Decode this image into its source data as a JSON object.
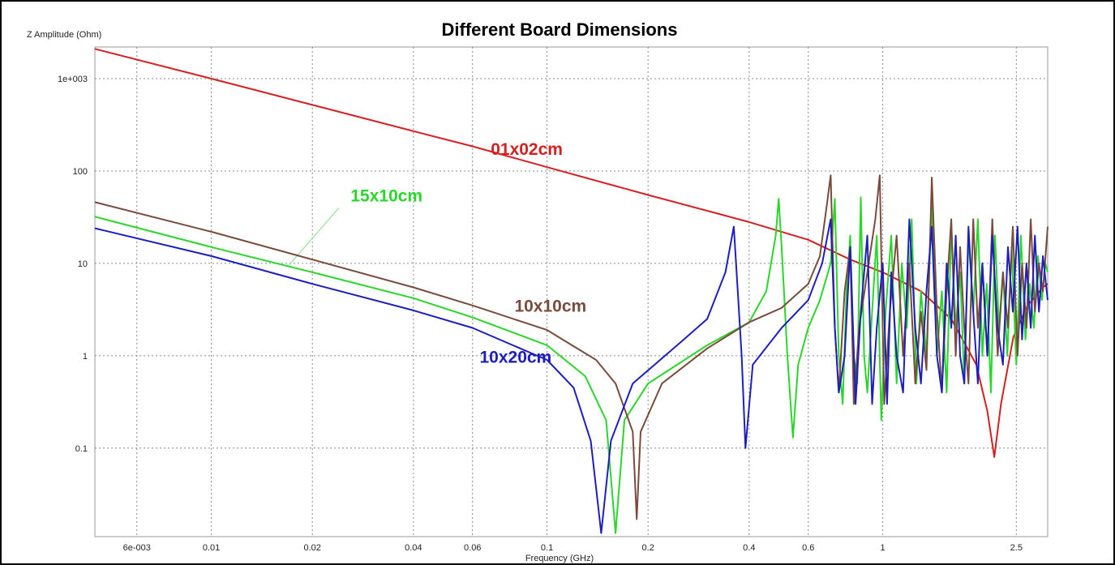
{
  "chart_data": {
    "type": "line",
    "title": "Different Board Dimensions",
    "xlabel": "Frequency (GHz)",
    "ylabel": "Z Amplitude (Ohm)",
    "x_scale": "log",
    "y_scale": "log",
    "xlim": [
      0.0045,
      3.1
    ],
    "ylim": [
      0.011,
      2200
    ],
    "grid": true,
    "x_ticks": [
      {
        "value": 0.006,
        "label": "6e-003"
      },
      {
        "value": 0.01,
        "label": "0.01"
      },
      {
        "value": 0.02,
        "label": "0.02"
      },
      {
        "value": 0.04,
        "label": "0.04"
      },
      {
        "value": 0.06,
        "label": "0.06"
      },
      {
        "value": 0.1,
        "label": "0.1"
      },
      {
        "value": 0.2,
        "label": "0.2"
      },
      {
        "value": 0.4,
        "label": "0.4"
      },
      {
        "value": 0.6,
        "label": "0.6"
      },
      {
        "value": 1,
        "label": "1"
      },
      {
        "value": 2.5,
        "label": "2.5"
      }
    ],
    "y_ticks": [
      {
        "value": 0.1,
        "label": "0.1"
      },
      {
        "value": 1,
        "label": "1"
      },
      {
        "value": 10,
        "label": "10"
      },
      {
        "value": 100,
        "label": "100"
      },
      {
        "value": 1000,
        "label": "1e+003"
      }
    ],
    "series": [
      {
        "name": "01x02cm",
        "color": "#d42020",
        "label_at": [
          0.068,
          150
        ],
        "points": [
          [
            0.0045,
            2100
          ],
          [
            0.01,
            1000
          ],
          [
            0.02,
            520
          ],
          [
            0.04,
            270
          ],
          [
            0.06,
            185
          ],
          [
            0.1,
            110
          ],
          [
            0.2,
            55
          ],
          [
            0.4,
            28
          ],
          [
            0.6,
            18
          ],
          [
            0.8,
            11
          ],
          [
            1.0,
            8
          ],
          [
            1.3,
            5
          ],
          [
            1.6,
            2.5
          ],
          [
            1.9,
            0.8
          ],
          [
            2.05,
            0.25
          ],
          [
            2.15,
            0.08
          ],
          [
            2.25,
            0.3
          ],
          [
            2.45,
            1.6
          ],
          [
            2.7,
            3.5
          ],
          [
            3.0,
            5.5
          ],
          [
            3.1,
            6
          ]
        ]
      },
      {
        "name": "15x10cm",
        "color": "#2ad62a",
        "label_at": [
          0.026,
          47
        ],
        "pointer": [
          [
            0.024,
            40
          ],
          [
            0.017,
            9.5
          ]
        ],
        "points": [
          [
            0.0045,
            32
          ],
          [
            0.01,
            15
          ],
          [
            0.02,
            8
          ],
          [
            0.04,
            4.2
          ],
          [
            0.06,
            2.6
          ],
          [
            0.1,
            1.3
          ],
          [
            0.13,
            0.6
          ],
          [
            0.15,
            0.2
          ],
          [
            0.16,
            0.012
          ],
          [
            0.17,
            0.2
          ],
          [
            0.2,
            0.5
          ],
          [
            0.3,
            1.3
          ],
          [
            0.4,
            2.3
          ],
          [
            0.45,
            5
          ],
          [
            0.48,
            20
          ],
          [
            0.49,
            50
          ],
          [
            0.5,
            15
          ],
          [
            0.52,
            1
          ],
          [
            0.54,
            0.13
          ],
          [
            0.56,
            0.8
          ],
          [
            0.6,
            2
          ],
          [
            0.65,
            4
          ],
          [
            0.7,
            10
          ],
          [
            0.72,
            50
          ],
          [
            0.74,
            1
          ],
          [
            0.76,
            0.3
          ],
          [
            0.78,
            5
          ],
          [
            0.8,
            20
          ],
          [
            0.82,
            1
          ],
          [
            0.84,
            0.5
          ],
          [
            0.86,
            52
          ],
          [
            0.88,
            1
          ],
          [
            0.9,
            0.4
          ],
          [
            0.93,
            3
          ],
          [
            0.96,
            20
          ],
          [
            0.99,
            0.2
          ],
          [
            1.02,
            3
          ],
          [
            1.06,
            20
          ],
          [
            1.1,
            0.5
          ],
          [
            1.14,
            10
          ],
          [
            1.18,
            2
          ],
          [
            1.22,
            30
          ],
          [
            1.26,
            0.5
          ],
          [
            1.3,
            5
          ],
          [
            1.35,
            1
          ],
          [
            1.4,
            50
          ],
          [
            1.45,
            1
          ],
          [
            1.5,
            5
          ],
          [
            1.55,
            0.4
          ],
          [
            1.6,
            25
          ],
          [
            1.65,
            2
          ],
          [
            1.7,
            8
          ],
          [
            1.75,
            0.5
          ],
          [
            1.8,
            20
          ],
          [
            1.86,
            3
          ],
          [
            1.92,
            30
          ],
          [
            1.98,
            1
          ],
          [
            2.04,
            6
          ],
          [
            2.1,
            0.4
          ],
          [
            2.16,
            20
          ],
          [
            2.22,
            2
          ],
          [
            2.28,
            8
          ],
          [
            2.35,
            1
          ],
          [
            2.42,
            15
          ],
          [
            2.5,
            0.8
          ],
          [
            2.58,
            20
          ],
          [
            2.66,
            1.5
          ],
          [
            2.74,
            6
          ],
          [
            2.82,
            2
          ],
          [
            2.9,
            12
          ],
          [
            2.98,
            4
          ],
          [
            3.05,
            10
          ],
          [
            3.1,
            8
          ]
        ]
      },
      {
        "name": "10x10cm",
        "color": "#7a4b3c",
        "label_at": [
          0.08,
          3.0
        ],
        "points": [
          [
            0.0045,
            46
          ],
          [
            0.01,
            22
          ],
          [
            0.02,
            11
          ],
          [
            0.04,
            5.5
          ],
          [
            0.06,
            3.5
          ],
          [
            0.1,
            1.9
          ],
          [
            0.14,
            0.9
          ],
          [
            0.16,
            0.5
          ],
          [
            0.18,
            0.15
          ],
          [
            0.185,
            0.017
          ],
          [
            0.19,
            0.15
          ],
          [
            0.22,
            0.5
          ],
          [
            0.3,
            1.2
          ],
          [
            0.4,
            2.3
          ],
          [
            0.5,
            3.3
          ],
          [
            0.6,
            6
          ],
          [
            0.65,
            12
          ],
          [
            0.68,
            40
          ],
          [
            0.7,
            90
          ],
          [
            0.72,
            2
          ],
          [
            0.74,
            0.4
          ],
          [
            0.77,
            5
          ],
          [
            0.8,
            15
          ],
          [
            0.82,
            0.3
          ],
          [
            0.85,
            2
          ],
          [
            0.9,
            8
          ],
          [
            0.95,
            30
          ],
          [
            0.98,
            90
          ],
          [
            1.01,
            0.3
          ],
          [
            1.05,
            3
          ],
          [
            1.1,
            20
          ],
          [
            1.15,
            1
          ],
          [
            1.2,
            10
          ],
          [
            1.25,
            0.5
          ],
          [
            1.3,
            3
          ],
          [
            1.35,
            0.7
          ],
          [
            1.4,
            85
          ],
          [
            1.45,
            3
          ],
          [
            1.5,
            0.4
          ],
          [
            1.55,
            5
          ],
          [
            1.6,
            30
          ],
          [
            1.65,
            1
          ],
          [
            1.7,
            15
          ],
          [
            1.75,
            2
          ],
          [
            1.8,
            0.5
          ],
          [
            1.86,
            30
          ],
          [
            1.92,
            2
          ],
          [
            1.98,
            10
          ],
          [
            2.05,
            1
          ],
          [
            2.12,
            30
          ],
          [
            2.2,
            1
          ],
          [
            2.28,
            8
          ],
          [
            2.36,
            2
          ],
          [
            2.44,
            25
          ],
          [
            2.52,
            1
          ],
          [
            2.6,
            10
          ],
          [
            2.68,
            2
          ],
          [
            2.76,
            30
          ],
          [
            2.84,
            3
          ],
          [
            2.92,
            10
          ],
          [
            3.0,
            5
          ],
          [
            3.1,
            25
          ]
        ]
      },
      {
        "name": "10x20cm",
        "color": "#1e1ebe",
        "label_at": [
          0.063,
          0.84
        ],
        "points": [
          [
            0.0045,
            24
          ],
          [
            0.01,
            12
          ],
          [
            0.02,
            6
          ],
          [
            0.04,
            3.1
          ],
          [
            0.06,
            2.0
          ],
          [
            0.1,
            0.9
          ],
          [
            0.12,
            0.45
          ],
          [
            0.135,
            0.12
          ],
          [
            0.145,
            0.012
          ],
          [
            0.155,
            0.12
          ],
          [
            0.18,
            0.5
          ],
          [
            0.25,
            1.4
          ],
          [
            0.3,
            2.5
          ],
          [
            0.34,
            8
          ],
          [
            0.36,
            25
          ],
          [
            0.37,
            5
          ],
          [
            0.38,
            1
          ],
          [
            0.39,
            0.1
          ],
          [
            0.41,
            0.8
          ],
          [
            0.5,
            2
          ],
          [
            0.6,
            4
          ],
          [
            0.66,
            10
          ],
          [
            0.7,
            30
          ],
          [
            0.72,
            2
          ],
          [
            0.74,
            0.4
          ],
          [
            0.77,
            1
          ],
          [
            0.8,
            15
          ],
          [
            0.83,
            0.3
          ],
          [
            0.86,
            3
          ],
          [
            0.9,
            20
          ],
          [
            0.93,
            0.3
          ],
          [
            0.96,
            2
          ],
          [
            1.0,
            10
          ],
          [
            1.03,
            0.3
          ],
          [
            1.06,
            8
          ],
          [
            1.1,
            1
          ],
          [
            1.15,
            0.4
          ],
          [
            1.2,
            30
          ],
          [
            1.25,
            2
          ],
          [
            1.3,
            0.5
          ],
          [
            1.35,
            5
          ],
          [
            1.4,
            25
          ],
          [
            1.45,
            1
          ],
          [
            1.5,
            0.4
          ],
          [
            1.55,
            10
          ],
          [
            1.6,
            2
          ],
          [
            1.65,
            20
          ],
          [
            1.7,
            1
          ],
          [
            1.75,
            0.5
          ],
          [
            1.8,
            25
          ],
          [
            1.86,
            3
          ],
          [
            1.92,
            0.5
          ],
          [
            1.98,
            10
          ],
          [
            2.05,
            1
          ],
          [
            2.12,
            20
          ],
          [
            2.2,
            2
          ],
          [
            2.28,
            0.8
          ],
          [
            2.36,
            15
          ],
          [
            2.44,
            3
          ],
          [
            2.52,
            25
          ],
          [
            2.6,
            1.5
          ],
          [
            2.68,
            10
          ],
          [
            2.76,
            2
          ],
          [
            2.84,
            20
          ],
          [
            2.92,
            3
          ],
          [
            3.0,
            12
          ],
          [
            3.1,
            4
          ]
        ]
      }
    ]
  }
}
